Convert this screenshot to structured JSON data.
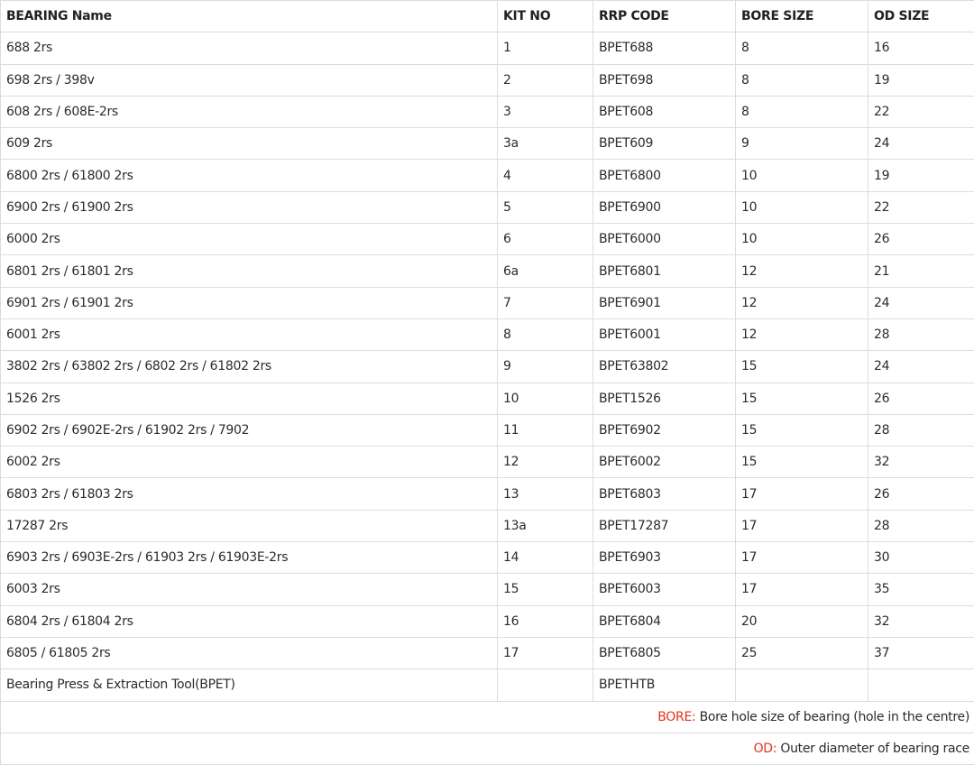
{
  "table": {
    "headers": [
      "BEARING Name",
      "KIT NO",
      "RRP CODE",
      "BORE SIZE",
      "OD SIZE"
    ],
    "rows": [
      [
        "688 2rs",
        "1",
        "BPET688",
        8,
        16
      ],
      [
        "698 2rs / 398v",
        "2",
        "BPET698",
        8,
        19
      ],
      [
        "608 2rs / 608E-2rs",
        "3",
        "BPET608",
        8,
        22
      ],
      [
        "609 2rs",
        "3a",
        "BPET609",
        9,
        24
      ],
      [
        "6800 2rs / 61800 2rs",
        "4",
        "BPET6800",
        10,
        19
      ],
      [
        "6900 2rs / 61900 2rs",
        "5",
        "BPET6900",
        10,
        22
      ],
      [
        "6000 2rs",
        "6",
        "BPET6000",
        10,
        26
      ],
      [
        "6801 2rs / 61801 2rs",
        "6a",
        "BPET6801",
        12,
        21
      ],
      [
        "6901 2rs / 61901 2rs",
        "7",
        "BPET6901",
        12,
        24
      ],
      [
        "6001 2rs",
        "8",
        "BPET6001",
        12,
        28
      ],
      [
        "3802 2rs / 63802 2rs / 6802 2rs / 61802 2rs",
        "9",
        "BPET63802",
        15,
        24
      ],
      [
        "1526 2rs",
        "10",
        "BPET1526",
        15,
        26
      ],
      [
        "6902 2rs / 6902E-2rs / 61902 2rs / 7902",
        "11",
        "BPET6902",
        15,
        28
      ],
      [
        "6002 2rs",
        "12",
        "BPET6002",
        15,
        32
      ],
      [
        "6803 2rs / 61803 2rs",
        "13",
        "BPET6803",
        17,
        26
      ],
      [
        "17287 2rs",
        "13a",
        "BPET17287",
        17,
        28
      ],
      [
        "6903 2rs / 6903E-2rs / 61903 2rs / 61903E-2rs",
        "14",
        "BPET6903",
        17,
        30
      ],
      [
        "6003 2rs",
        "15",
        "BPET6003",
        17,
        35
      ],
      [
        "6804 2rs / 61804 2rs",
        "16",
        "BPET6804",
        20,
        32
      ],
      [
        "6805 / 61805 2rs",
        "17",
        "BPET6805",
        25,
        37
      ],
      [
        "Bearing Press & Extraction Tool(BPET)",
        null,
        "BPETHTB",
        null,
        null
      ]
    ],
    "notes": [
      {
        "label": "BORE:",
        "text": "Bore hole size of bearing (hole in the centre)"
      },
      {
        "label": "OD:",
        "text": "Outer diameter of bearing race"
      }
    ]
  }
}
